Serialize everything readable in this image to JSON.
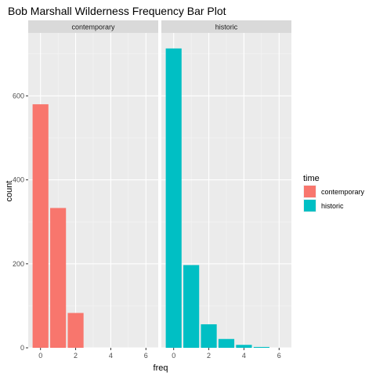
{
  "chart_data": {
    "type": "bar",
    "title": "Bob Marshall Wilderness Frequency Bar Plot",
    "xlabel": "freq",
    "ylabel": "count",
    "xlim": [
      -0.7,
      6.7
    ],
    "ylim": [
      0,
      750
    ],
    "x_ticks": [
      0,
      2,
      4,
      6
    ],
    "y_ticks": [
      0,
      200,
      400,
      600
    ],
    "grid": true,
    "legend": {
      "title": "time",
      "position": "right",
      "entries": [
        {
          "label": "contemporary",
          "color": "#F8766D"
        },
        {
          "label": "historic",
          "color": "#00BFC4"
        }
      ]
    },
    "panels": [
      {
        "name": "contemporary",
        "color": "#F8766D",
        "x": [
          0,
          1,
          2
        ],
        "values": [
          580,
          333,
          83
        ]
      },
      {
        "name": "historic",
        "color": "#00BFC4",
        "x": [
          0,
          1,
          2,
          3,
          4,
          5
        ],
        "values": [
          713,
          197,
          56,
          21,
          7,
          2
        ]
      }
    ]
  }
}
